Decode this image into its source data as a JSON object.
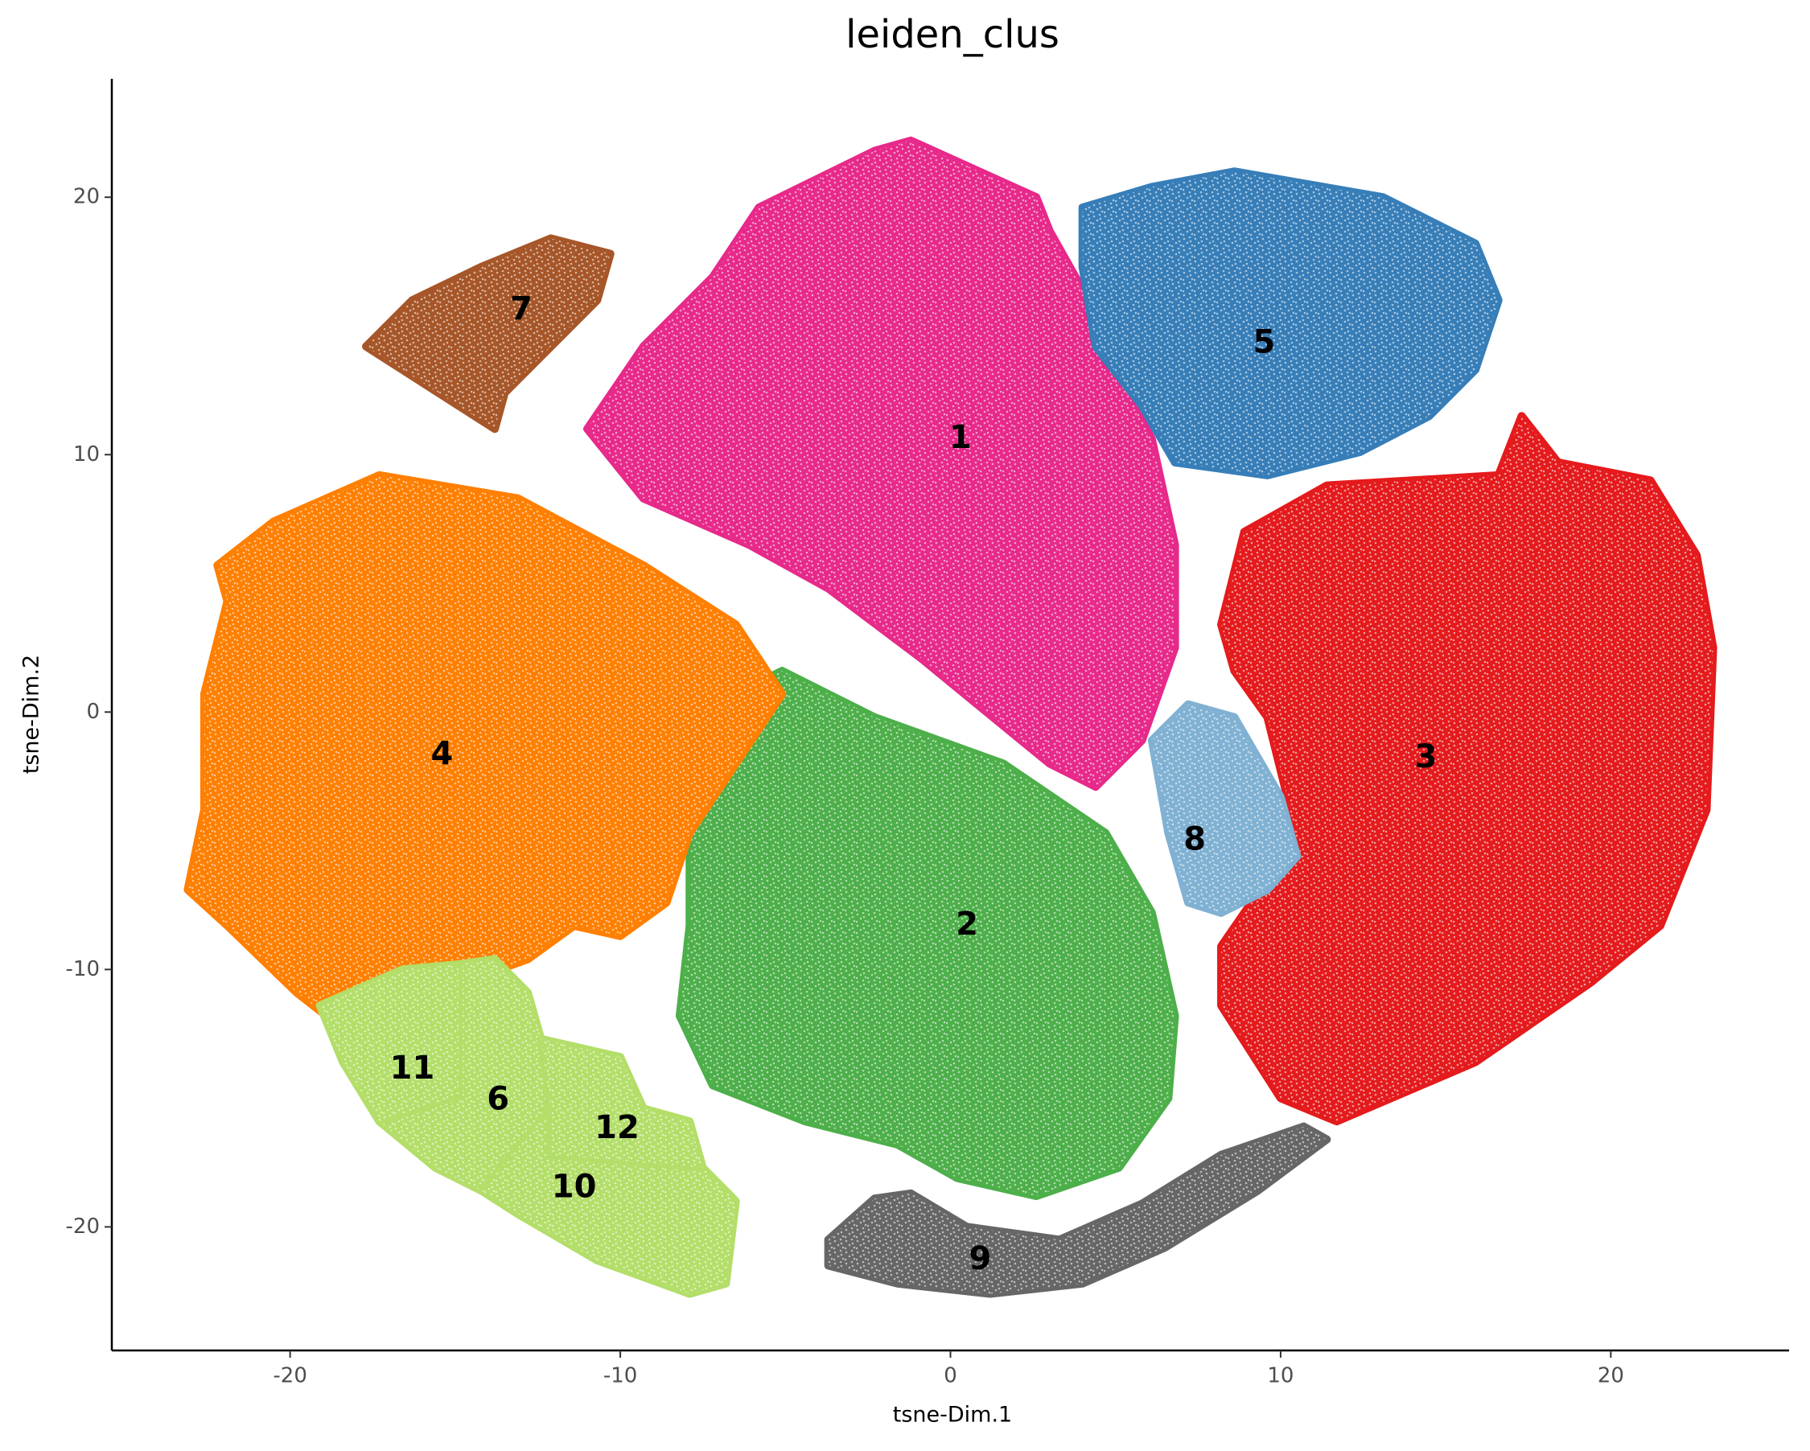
{
  "chart_data": {
    "type": "scatter",
    "title": "leiden_clus",
    "x_label": "tsne-Dim.1",
    "y_label": "tsne-Dim.2",
    "xlim": [
      -25.4,
      25.4
    ],
    "ylim": [
      -24.8,
      24.6
    ],
    "xticks": [
      -20,
      -10,
      0,
      10,
      20
    ],
    "yticks": [
      -20,
      -10,
      0,
      10,
      20
    ],
    "grid": false,
    "series": [
      {
        "name": "1",
        "color": "#e7298a",
        "label_x": 0.3,
        "label_y": 10.6,
        "x": [
          -11.0,
          -9.3,
          -7.2,
          -5.8,
          -2.3,
          -1.2,
          2.6,
          3.0,
          4.4,
          5.2,
          6.1,
          6.8,
          6.8,
          5.8,
          4.4,
          3.0,
          -0.9,
          -3.7,
          -6.1,
          -9.3
        ],
        "y": [
          11.0,
          14.2,
          16.9,
          19.6,
          21.8,
          22.2,
          20.0,
          18.7,
          15.5,
          12.8,
          10.6,
          6.5,
          2.5,
          -1.1,
          -2.9,
          -2.0,
          2.1,
          4.8,
          6.5,
          8.3
        ]
      },
      {
        "name": "2",
        "color": "#4daf4a",
        "label_x": 0.5,
        "label_y": -8.3,
        "x": [
          -7.9,
          -6.5,
          -5.1,
          -2.3,
          1.6,
          4.7,
          6.1,
          6.8,
          6.6,
          5.1,
          2.6,
          0.2,
          -1.6,
          -4.4,
          -7.2,
          -8.2,
          -7.9
        ],
        "y": [
          -3.8,
          0.7,
          1.6,
          -0.2,
          -2.0,
          -4.7,
          -7.8,
          -11.8,
          -15.0,
          -17.7,
          -18.8,
          -18.1,
          -16.8,
          -15.9,
          -14.5,
          -11.8,
          -8.3
        ]
      },
      {
        "name": "3",
        "color": "#e41a1c",
        "label_x": 14.4,
        "label_y": -1.8,
        "x": [
          8.2,
          8.9,
          11.4,
          16.6,
          17.3,
          18.4,
          21.2,
          22.6,
          23.1,
          22.9,
          21.5,
          19.4,
          15.9,
          11.7,
          10.0,
          8.2,
          8.2,
          9.6,
          10.3,
          9.6,
          8.6
        ],
        "y": [
          3.4,
          7.0,
          8.8,
          9.2,
          11.5,
          9.7,
          9.0,
          6.1,
          2.5,
          -3.8,
          -8.3,
          -10.5,
          -13.6,
          -15.9,
          -15.0,
          -11.4,
          -9.1,
          -6.5,
          -3.8,
          -0.2,
          1.6
        ]
      },
      {
        "name": "4",
        "color": "#ff7f00",
        "label_x": -15.4,
        "label_y": -1.7,
        "x": [
          -22.2,
          -20.5,
          -17.3,
          -13.1,
          -9.3,
          -6.5,
          -5.1,
          -6.5,
          -7.9,
          -8.6,
          -10.0,
          -11.4,
          -12.8,
          -15.6,
          -18.4,
          -19.8,
          -21.9,
          -23.1,
          -22.6,
          -22.6,
          -21.9
        ],
        "y": [
          5.7,
          7.4,
          9.2,
          8.3,
          5.7,
          3.4,
          0.7,
          -2.0,
          -4.7,
          -7.4,
          -8.7,
          -8.3,
          -9.6,
          -10.9,
          -12.3,
          -10.9,
          -8.3,
          -6.9,
          -3.8,
          0.7,
          4.3
        ]
      },
      {
        "name": "5",
        "color": "#377eb8",
        "label_x": 9.5,
        "label_y": 14.3,
        "x": [
          4.0,
          6.1,
          8.6,
          13.1,
          15.9,
          16.6,
          15.9,
          14.5,
          12.4,
          9.6,
          6.8,
          5.8,
          4.4,
          4.0
        ],
        "y": [
          19.6,
          20.4,
          21.0,
          20.0,
          18.2,
          16.0,
          13.3,
          11.5,
          10.1,
          9.2,
          9.7,
          11.9,
          14.2,
          17.3
        ]
      },
      {
        "name": "6",
        "color": "#b3de69",
        "label_x": -13.7,
        "label_y": -15.1,
        "x": [
          -14.9,
          -13.8,
          -12.8,
          -12.4,
          -12.1,
          -14.2,
          -15.6,
          -17.3,
          -14.9
        ],
        "y": [
          -9.8,
          -9.6,
          -10.9,
          -12.7,
          -15.4,
          -18.6,
          -17.7,
          -15.9,
          -14.9
        ]
      },
      {
        "name": "7",
        "color": "#a65628",
        "label_x": -13.0,
        "label_y": 15.6,
        "x": [
          -17.7,
          -16.3,
          -14.2,
          -12.1,
          -10.3,
          -10.7,
          -12.1,
          -13.5,
          -13.8,
          -14.9,
          -16.6
        ],
        "y": [
          14.2,
          16.0,
          17.3,
          18.4,
          17.8,
          16.0,
          14.2,
          12.4,
          11.0,
          11.9,
          13.3
        ]
      },
      {
        "name": "8",
        "color": "#80b1d3",
        "label_x": 7.4,
        "label_y": -5.0,
        "x": [
          6.1,
          7.2,
          8.6,
          10.0,
          10.5,
          9.6,
          8.2,
          7.2,
          6.6
        ],
        "y": [
          -1.1,
          0.3,
          -0.2,
          -3.3,
          -5.6,
          -6.9,
          -7.8,
          -7.4,
          -4.7
        ]
      },
      {
        "name": "9",
        "color": "#666666",
        "label_x": 0.9,
        "label_y": -21.3,
        "x": [
          -3.7,
          -2.3,
          -1.2,
          0.5,
          3.3,
          5.8,
          8.2,
          10.7,
          11.4,
          9.3,
          6.5,
          4.0,
          1.2,
          -1.6,
          -3.7
        ],
        "y": [
          -20.5,
          -18.9,
          -18.7,
          -20.0,
          -20.5,
          -19.1,
          -17.2,
          -16.1,
          -16.6,
          -18.6,
          -20.8,
          -22.2,
          -22.6,
          -22.2,
          -21.5
        ]
      },
      {
        "name": "10",
        "color": "#b3de69",
        "label_x": -11.4,
        "label_y": -18.5,
        "x": [
          -12.1,
          -12.1,
          -7.5,
          -6.5,
          -6.8,
          -7.9,
          -10.7,
          -13.1,
          -14.2
        ],
        "y": [
          -15.4,
          -17.2,
          -17.7,
          -19.0,
          -22.2,
          -22.6,
          -21.3,
          -19.5,
          -18.6
        ]
      },
      {
        "name": "11",
        "color": "#b3de69",
        "label_x": -16.3,
        "label_y": -13.9,
        "x": [
          -19.1,
          -16.6,
          -14.9,
          -14.9,
          -17.3,
          -18.4
        ],
        "y": [
          -11.4,
          -10.0,
          -9.8,
          -14.9,
          -15.9,
          -13.6
        ]
      },
      {
        "name": "12",
        "color": "#b3de69",
        "label_x": -10.1,
        "label_y": -16.2,
        "x": [
          -12.4,
          -10.0,
          -9.3,
          -7.9,
          -7.5,
          -12.1,
          -12.1
        ],
        "y": [
          -12.7,
          -13.4,
          -15.4,
          -15.9,
          -17.7,
          -17.2,
          -15.4
        ]
      }
    ]
  }
}
